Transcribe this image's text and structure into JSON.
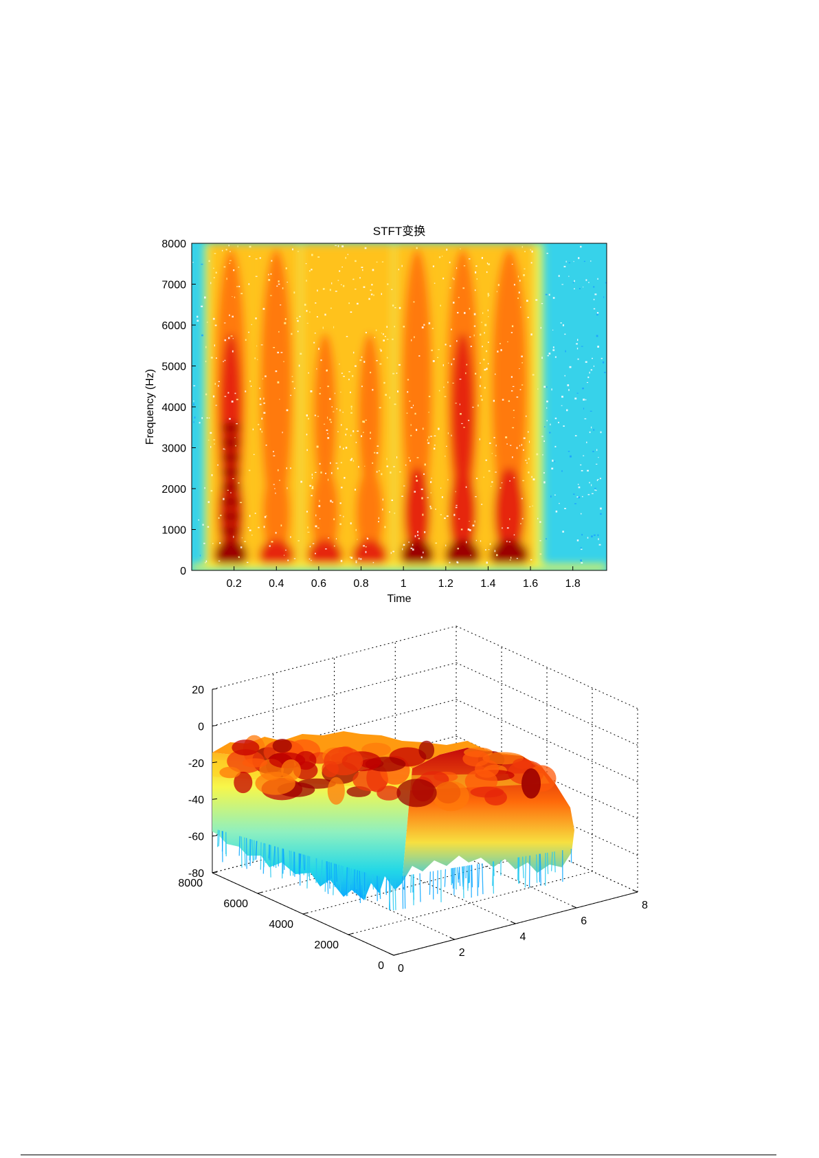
{
  "chart_data": [
    {
      "type": "heatmap",
      "title": "STFT变换",
      "xlabel": "Time",
      "ylabel": "Frequency (Hz)",
      "xlim": [
        0,
        1.96
      ],
      "ylim": [
        0,
        8000
      ],
      "x_ticks": [
        "0.2",
        "0.4",
        "0.6",
        "0.8",
        "1",
        "1.2",
        "1.4",
        "1.6",
        "1.8"
      ],
      "x_tick_values": [
        0.2,
        0.4,
        0.6,
        0.8,
        1.0,
        1.2,
        1.4,
        1.6,
        1.8
      ],
      "y_ticks": [
        "0",
        "1000",
        "2000",
        "3000",
        "4000",
        "5000",
        "6000",
        "7000",
        "8000"
      ],
      "y_tick_values": [
        0,
        1000,
        2000,
        3000,
        4000,
        5000,
        6000,
        7000,
        8000
      ],
      "colormap": [
        "#00b3ff",
        "#24d8e6",
        "#8ef0c0",
        "#f7f74a",
        "#ffc21a",
        "#ff7a0a",
        "#e6260a",
        "#9c0000"
      ],
      "grid": false,
      "segments": [
        {
          "t_start": 0.1,
          "t_end": 0.27,
          "intensity": 0.97
        },
        {
          "t_start": 0.31,
          "t_end": 0.49,
          "intensity": 0.92
        },
        {
          "t_start": 0.54,
          "t_end": 0.72,
          "intensity": 0.9
        },
        {
          "t_start": 0.75,
          "t_end": 0.93,
          "intensity": 0.85
        },
        {
          "t_start": 0.98,
          "t_end": 1.15,
          "intensity": 0.95
        },
        {
          "t_start": 1.19,
          "t_end": 1.37,
          "intensity": 0.96
        },
        {
          "t_start": 1.4,
          "t_end": 1.6,
          "intensity": 0.93
        }
      ]
    },
    {
      "type": "surface3d",
      "title": "",
      "x_ticks": [
        "0",
        "2",
        "4",
        "6",
        "8"
      ],
      "x_tick_values": [
        0,
        2,
        4,
        6,
        8
      ],
      "y_ticks": [
        "0",
        "2000",
        "4000",
        "6000",
        "8000"
      ],
      "y_tick_values": [
        0,
        2000,
        4000,
        6000,
        8000
      ],
      "z_ticks": [
        "20",
        "0",
        "-20",
        "-40",
        "-60",
        "-80"
      ],
      "z_tick_values": [
        20,
        0,
        -20,
        -40,
        -60,
        -80
      ],
      "xlim": [
        0,
        8
      ],
      "ylim": [
        0,
        8000
      ],
      "zlim": [
        -80,
        20
      ],
      "grid": true,
      "colormap": [
        "#00b3ff",
        "#24d8e6",
        "#8ef0c0",
        "#f7f74a",
        "#ffc21a",
        "#ff7a0a",
        "#e6260a",
        "#9c0000"
      ]
    }
  ]
}
